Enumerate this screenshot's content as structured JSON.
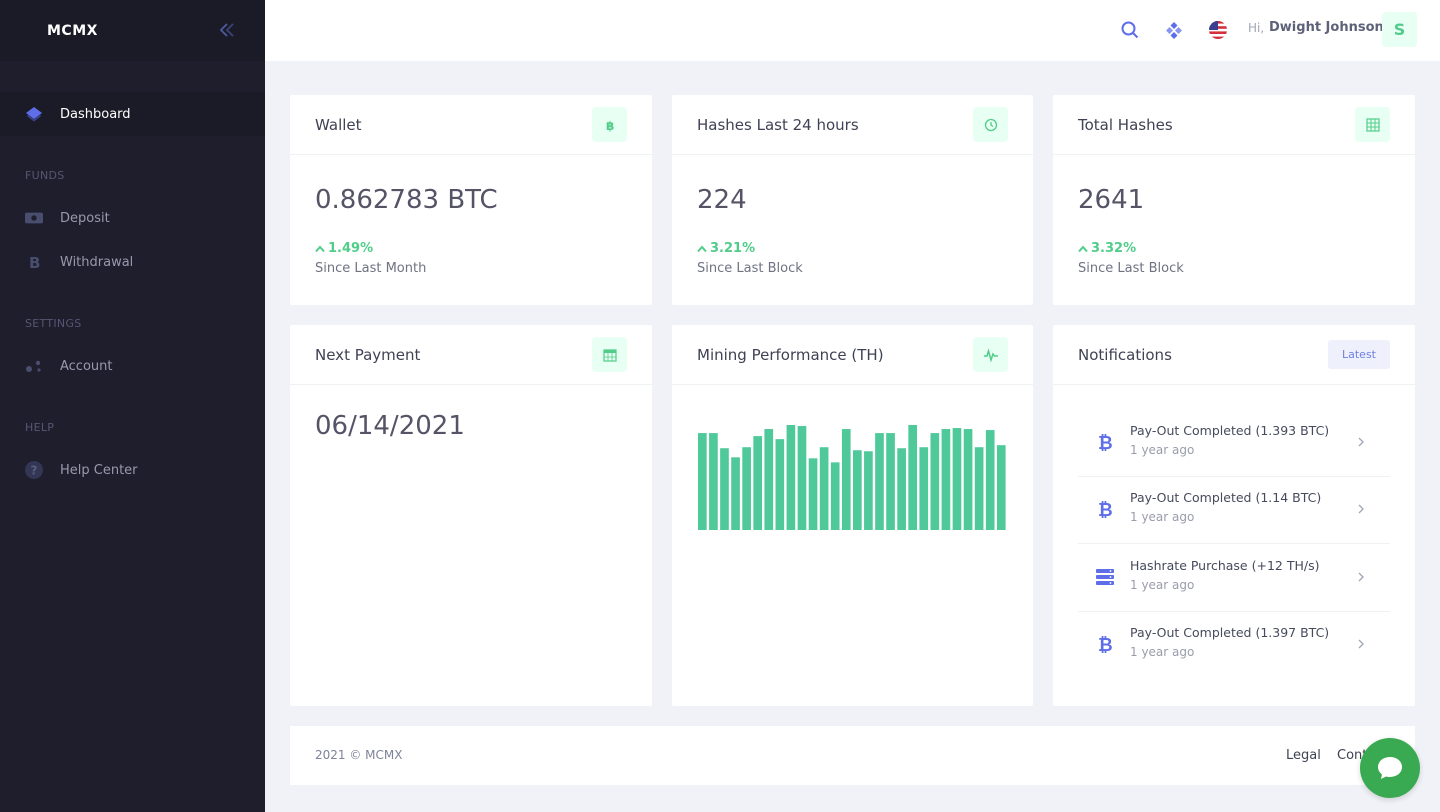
{
  "brand": {
    "name": "MCMX"
  },
  "sidebar": {
    "dashboard": "Dashboard",
    "sections": {
      "funds": "FUNDS",
      "settings": "SETTINGS",
      "help": "HELP"
    },
    "deposit": "Deposit",
    "withdrawal": "Withdrawal",
    "account": "Account",
    "help_center": "Help Center"
  },
  "header": {
    "greeting": "Hi,",
    "user_name": "Dwight Johnson",
    "avatar_initial": "S"
  },
  "cards": {
    "wallet": {
      "title": "Wallet",
      "value": "0.862783 BTC",
      "change": "1.49%",
      "sub": "Since Last Month",
      "icon": "bitcoin-icon"
    },
    "hashes24": {
      "title": "Hashes Last 24 hours",
      "value": "224",
      "change": "3.21%",
      "sub": "Since Last Block",
      "icon": "clock-icon"
    },
    "total": {
      "title": "Total Hashes",
      "value": "2641",
      "change": "3.32%",
      "sub": "Since Last Block",
      "icon": "grid-icon"
    },
    "payment": {
      "title": "Next Payment",
      "value": "06/14/2021",
      "icon": "calendar-icon"
    },
    "mining": {
      "title": "Mining Performance (TH)",
      "icon": "pulse-icon"
    },
    "notifications": {
      "title": "Notifications",
      "latest": "Latest",
      "items": [
        {
          "title": "Pay-Out Completed (1.393 BTC)",
          "time": "1 year ago",
          "icon": "bitcoin-icon"
        },
        {
          "title": "Pay-Out Completed (1.14 BTC)",
          "time": "1 year ago",
          "icon": "bitcoin-icon"
        },
        {
          "title": "Hashrate Purchase (+12 TH/s)",
          "time": "1 year ago",
          "icon": "server-icon"
        },
        {
          "title": "Pay-Out Completed (1.397 BTC)",
          "time": "1 year ago",
          "icon": "bitcoin-icon"
        }
      ]
    }
  },
  "chart_data": {
    "type": "bar",
    "values": [
      96,
      96,
      81,
      72,
      82,
      93,
      100,
      90,
      104,
      103,
      71,
      82,
      67,
      100,
      79,
      78,
      96,
      96,
      81,
      104,
      82,
      96,
      100,
      101,
      100,
      82,
      99,
      84
    ],
    "ylim": [
      0,
      104
    ],
    "color": "#50c99a",
    "grid": false
  },
  "footer": {
    "copyright": "2021 © MCMX",
    "legal": "Legal",
    "contact": "Contact"
  },
  "colors": {
    "sidebar": "#1e1e2d",
    "accent": "#50cd89",
    "primary": "#6f7fe5",
    "background": "#f1f2f7"
  }
}
